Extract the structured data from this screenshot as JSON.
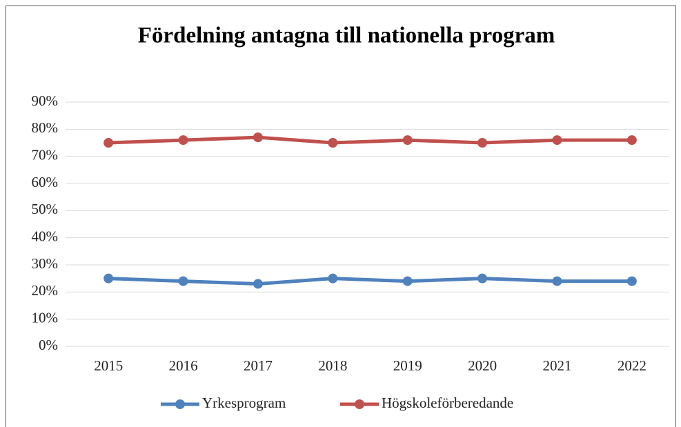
{
  "chart_data": {
    "type": "line",
    "title": "Fördelning antagna till nationella program",
    "categories": [
      "2015",
      "2016",
      "2017",
      "2018",
      "2019",
      "2020",
      "2021",
      "2022"
    ],
    "series": [
      {
        "name": "Yrkesprogram",
        "color": "#4f81bd",
        "values": [
          25,
          24,
          23,
          25,
          24,
          25,
          24,
          24
        ]
      },
      {
        "name": "Högskoleförberedande",
        "color": "#c0504d",
        "values": [
          75,
          76,
          77,
          75,
          76,
          75,
          76,
          76
        ]
      }
    ],
    "ylim": [
      0,
      90
    ],
    "yticks": [
      {
        "value": 0,
        "label": "0%"
      },
      {
        "value": 10,
        "label": "10%"
      },
      {
        "value": 20,
        "label": "20%"
      },
      {
        "value": 30,
        "label": "30%"
      },
      {
        "value": 40,
        "label": "40%"
      },
      {
        "value": 50,
        "label": "50%"
      },
      {
        "value": 60,
        "label": "60%"
      },
      {
        "value": 70,
        "label": "70%"
      },
      {
        "value": 80,
        "label": "80%"
      },
      {
        "value": 90,
        "label": "90%"
      }
    ],
    "grid": true,
    "legend": "bottom"
  }
}
